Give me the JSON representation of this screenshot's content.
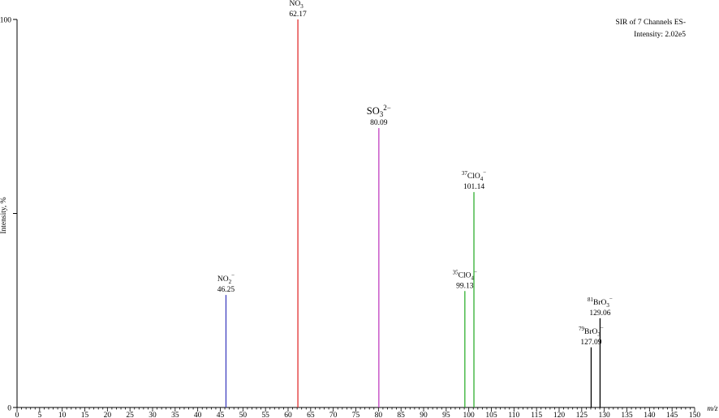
{
  "chart_data": {
    "type": "bar",
    "title": "",
    "info": [
      "SIR of 7 Channels ES-",
      "Intensity: 2.02e5"
    ],
    "xlabel": "m/z",
    "ylabel": "Intensity, %",
    "xlim": [
      0,
      150
    ],
    "ylim": [
      0,
      100
    ],
    "x_ticks": [
      0,
      5,
      10,
      15,
      20,
      25,
      30,
      35,
      40,
      45,
      50,
      55,
      60,
      65,
      70,
      75,
      80,
      85,
      90,
      95,
      100,
      105,
      110,
      115,
      120,
      125,
      130,
      135,
      140,
      145,
      150
    ],
    "y_tick_labels": [
      "0",
      "100"
    ],
    "peaks": [
      {
        "ion_base": "NO",
        "ion_sub": "2",
        "ion_sup": "−",
        "label": "46.25",
        "x": 46.25,
        "y": 29,
        "color": "#4040c0",
        "big": false
      },
      {
        "ion_base": "NO",
        "ion_sub": "3",
        "ion_sup": "−",
        "label": "62.17",
        "x": 62.17,
        "y": 100,
        "color": "#e03030",
        "big": false
      },
      {
        "ion_base": "SO",
        "ion_sub": "3",
        "ion_sup": "2−",
        "label": "80.09",
        "x": 80.09,
        "y": 72,
        "color": "#c040c0",
        "big": true
      },
      {
        "ion_pre": "35",
        "ion_base": "ClO",
        "ion_sub": "4",
        "ion_sup": "−",
        "label": "99.13",
        "x": 99.13,
        "y": 30,
        "color": "#30b030",
        "big": false
      },
      {
        "ion_pre": "37",
        "ion_base": "ClO",
        "ion_sub": "4",
        "ion_sup": "−",
        "label": "101.14",
        "x": 101.14,
        "y": 55.5,
        "color": "#30b030",
        "big": false
      },
      {
        "ion_pre": "79",
        "ion_base": "BrO",
        "ion_sub": "3",
        "ion_sup": "−",
        "label": "127.09",
        "x": 127.09,
        "y": 15.5,
        "color": "#000000",
        "big": false
      },
      {
        "ion_pre": "81",
        "ion_base": "BrO",
        "ion_sub": "3",
        "ion_sup": "−",
        "label": "129.06",
        "x": 129.06,
        "y": 23,
        "color": "#000000",
        "big": false
      }
    ]
  }
}
